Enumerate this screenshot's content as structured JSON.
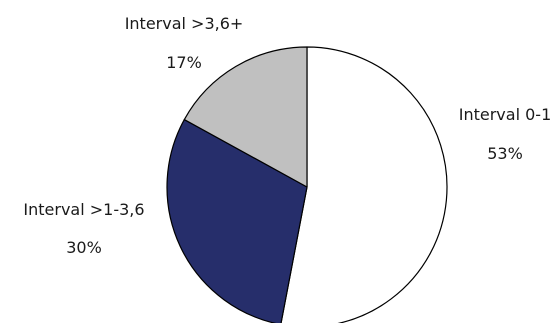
{
  "chart_data": {
    "type": "pie",
    "slices": [
      {
        "label": "Interval 0-1",
        "value": 53,
        "value_label": "53%",
        "color": "#ffffff"
      },
      {
        "label": "Interval >1-3,6",
        "value": 30,
        "value_label": "30%",
        "color": "#262e6b"
      },
      {
        "label": "Interval >3,6+",
        "value": 17,
        "value_label": "17%",
        "color": "#c0c0c0"
      }
    ],
    "start_angle": "12 o'clock",
    "direction": "clockwise",
    "legend": "none"
  }
}
